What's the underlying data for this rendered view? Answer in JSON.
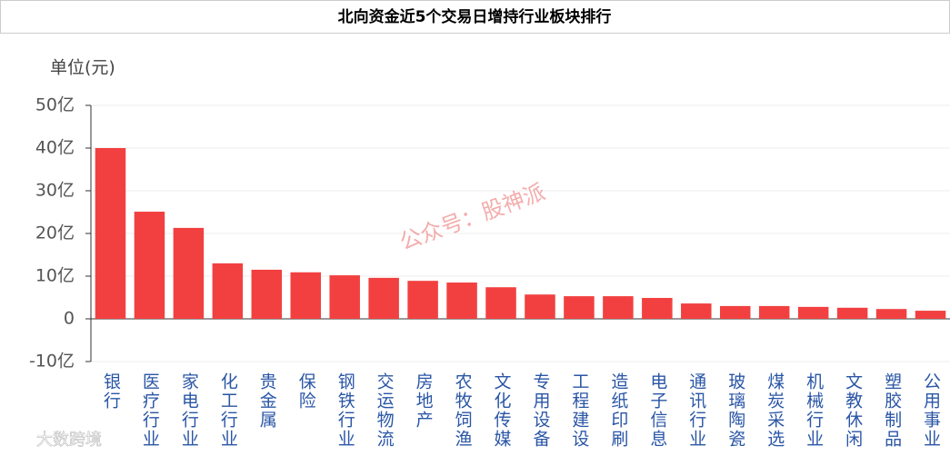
{
  "chart_data": {
    "type": "bar",
    "title": "北向资金近5个交易日增持行业板块排行",
    "y_label": "单位(元)",
    "categories": [
      "银行",
      "医疗行业",
      "家电行业",
      "化工行业",
      "贵金属",
      "保险",
      "钢铁行业",
      "交运物流",
      "房地产",
      "农牧饲渔",
      "文化传媒",
      "专用设备",
      "工程建设",
      "造纸印刷",
      "电子信息",
      "通讯行业",
      "玻璃陶瓷",
      "煤炭采选",
      "机械行业",
      "文教休闲",
      "塑胶制品",
      "公用事业"
    ],
    "values": [
      40,
      25.1,
      21.3,
      13,
      11.5,
      10.9,
      10.2,
      9.6,
      8.9,
      8.5,
      7.4,
      5.7,
      5.3,
      5.3,
      4.9,
      3.6,
      3.0,
      3.0,
      2.8,
      2.6,
      2.3,
      1.9
    ],
    "color": "#f24040",
    "ylim": [
      -10,
      50
    ],
    "yticks": [
      {
        "value": -10,
        "label": "-10亿"
      },
      0,
      {
        "value": 10,
        "label": "10亿"
      },
      {
        "value": 20,
        "label": "20亿"
      },
      {
        "value": 30,
        "label": "30亿"
      },
      {
        "value": 40,
        "label": "40亿"
      },
      {
        "value": 50,
        "label": "50亿"
      }
    ],
    "grid": true,
    "watermarks": [
      "公众号：股神派",
      "大数跨境"
    ]
  }
}
